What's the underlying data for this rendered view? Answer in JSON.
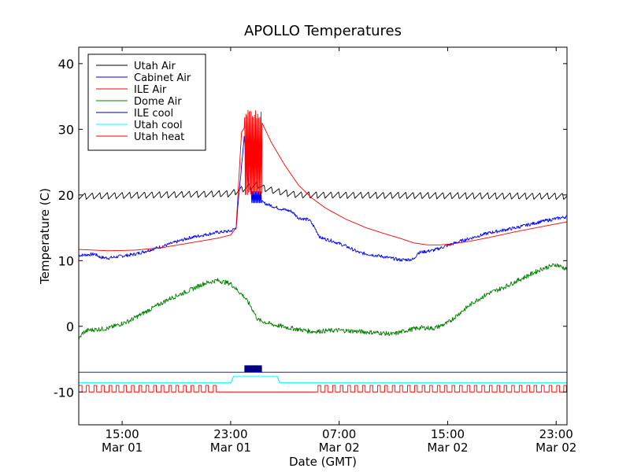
{
  "chart_data": {
    "type": "line",
    "title": "APOLLO Temperatures",
    "xlabel": "Date (GMT)",
    "ylabel": "Temperature (C)",
    "xlim": [
      11.8,
      47.8
    ],
    "ylim": [
      -15,
      42.5
    ],
    "yticks": [
      -10,
      0,
      10,
      20,
      30,
      40
    ],
    "xticks": [
      {
        "x": 15,
        "time": "15:00",
        "date": "Mar 01"
      },
      {
        "x": 23,
        "time": "23:00",
        "date": "Mar 01"
      },
      {
        "x": 31,
        "time": "07:00",
        "date": "Mar 02"
      },
      {
        "x": 39,
        "time": "15:00",
        "date": "Mar 02"
      },
      {
        "x": 47,
        "time": "23:00",
        "date": "Mar 02"
      }
    ],
    "legend_position": "top-left",
    "series": [
      {
        "name": "Utah Air",
        "color": "#000000",
        "kind": "sawtooth",
        "base": 19.8,
        "amplitude": 0.5,
        "period": 0.55,
        "points": [
          [
            11.8,
            19.8
          ],
          [
            23.0,
            20.2
          ],
          [
            24.0,
            21.0
          ],
          [
            25.0,
            21.5
          ],
          [
            25.5,
            21.0
          ],
          [
            26.5,
            20.5
          ],
          [
            28.0,
            20.0
          ],
          [
            47.8,
            19.8
          ]
        ]
      },
      {
        "name": "Cabinet Air",
        "color": "#0000ff",
        "kind": "noisy",
        "noise": 0.25,
        "points": [
          [
            11.8,
            10.8
          ],
          [
            13.0,
            11.0
          ],
          [
            13.4,
            10.5
          ],
          [
            14.0,
            10.4
          ],
          [
            16.0,
            11.0
          ],
          [
            18.0,
            12.2
          ],
          [
            20.0,
            13.5
          ],
          [
            22.0,
            14.3
          ],
          [
            23.0,
            14.5
          ],
          [
            23.4,
            15.0
          ],
          [
            23.7,
            22.0
          ],
          [
            24.0,
            29.0
          ],
          [
            24.3,
            22.0
          ],
          [
            24.6,
            20.5
          ],
          [
            25.0,
            19.5
          ],
          [
            25.4,
            18.8
          ],
          [
            26.5,
            18.0
          ],
          [
            27.5,
            17.5
          ],
          [
            28.0,
            16.5
          ],
          [
            28.8,
            16.2
          ],
          [
            29.2,
            15.0
          ],
          [
            29.6,
            13.5
          ],
          [
            30.5,
            13.0
          ],
          [
            31.5,
            12.2
          ],
          [
            32.5,
            11.2
          ],
          [
            34.0,
            10.7
          ],
          [
            35.5,
            10.1
          ],
          [
            36.5,
            10.2
          ],
          [
            36.8,
            11.2
          ],
          [
            38.0,
            11.6
          ],
          [
            40.0,
            13.0
          ],
          [
            42.0,
            14.2
          ],
          [
            44.0,
            15.0
          ],
          [
            46.0,
            16.0
          ],
          [
            47.8,
            16.7
          ]
        ]
      },
      {
        "name": "ILE Air",
        "color": "#ff0000",
        "kind": "smooth",
        "points": [
          [
            11.8,
            11.7
          ],
          [
            14.0,
            11.5
          ],
          [
            16.0,
            11.6
          ],
          [
            18.0,
            12.0
          ],
          [
            20.0,
            12.7
          ],
          [
            22.0,
            13.4
          ],
          [
            23.0,
            13.9
          ],
          [
            23.4,
            15.0
          ],
          [
            23.8,
            29.5
          ],
          [
            24.2,
            31.0
          ],
          [
            25.2,
            31.5
          ],
          [
            26.0,
            28.0
          ],
          [
            27.0,
            24.5
          ],
          [
            28.0,
            21.5
          ],
          [
            29.0,
            19.5
          ],
          [
            30.0,
            18.0
          ],
          [
            31.5,
            16.3
          ],
          [
            33.0,
            15.0
          ],
          [
            34.5,
            14.0
          ],
          [
            35.5,
            13.4
          ],
          [
            36.5,
            12.7
          ],
          [
            37.5,
            12.4
          ],
          [
            38.5,
            12.4
          ],
          [
            39.5,
            12.6
          ],
          [
            40.5,
            12.9
          ],
          [
            42.0,
            13.5
          ],
          [
            44.0,
            14.4
          ],
          [
            46.0,
            15.2
          ],
          [
            47.8,
            15.9
          ]
        ]
      },
      {
        "name": "Dome Air",
        "color": "#008000",
        "kind": "noisy",
        "noise": 0.35,
        "points": [
          [
            11.8,
            -2.0
          ],
          [
            12.1,
            -1.0
          ],
          [
            12.5,
            -0.6
          ],
          [
            14.0,
            -0.3
          ],
          [
            15.5,
            0.8
          ],
          [
            17.0,
            2.5
          ],
          [
            18.5,
            4.2
          ],
          [
            20.0,
            5.5
          ],
          [
            21.0,
            6.5
          ],
          [
            22.0,
            7.0
          ],
          [
            23.0,
            6.5
          ],
          [
            24.0,
            4.5
          ],
          [
            24.5,
            3.0
          ],
          [
            25.0,
            1.0
          ],
          [
            26.0,
            0.3
          ],
          [
            27.5,
            -0.3
          ],
          [
            29.0,
            -0.8
          ],
          [
            31.0,
            -0.6
          ],
          [
            32.5,
            -0.8
          ],
          [
            34.0,
            -1.0
          ],
          [
            35.0,
            -1.2
          ],
          [
            36.0,
            -0.6
          ],
          [
            37.0,
            -0.2
          ],
          [
            38.0,
            -0.3
          ],
          [
            39.0,
            0.5
          ],
          [
            40.0,
            2.2
          ],
          [
            41.0,
            3.8
          ],
          [
            42.0,
            5.0
          ],
          [
            43.0,
            5.8
          ],
          [
            44.0,
            6.8
          ],
          [
            45.0,
            7.8
          ],
          [
            46.0,
            8.8
          ],
          [
            47.0,
            9.4
          ],
          [
            47.8,
            8.7
          ]
        ]
      },
      {
        "name": "ILE cool",
        "color": "#000080",
        "kind": "flat",
        "points": [
          [
            11.8,
            -7.0
          ],
          [
            47.8,
            -7.0
          ]
        ]
      },
      {
        "name": "Utah cool",
        "color": "#00ffff",
        "kind": "flat",
        "points": [
          [
            11.8,
            -8.6
          ],
          [
            23.0,
            -8.6
          ],
          [
            23.2,
            -7.6
          ],
          [
            26.4,
            -7.6
          ],
          [
            26.6,
            -8.6
          ],
          [
            47.8,
            -8.6
          ]
        ]
      },
      {
        "name": "Utah heat",
        "color": "#ff0000",
        "kind": "pulses",
        "base": -10.0,
        "high": -9.0,
        "pulse_ranges": [
          [
            11.8,
            22.0
          ],
          [
            29.4,
            47.8
          ]
        ],
        "period": 0.55,
        "width": 0.2,
        "points": [
          [
            11.8,
            -10.0
          ],
          [
            47.8,
            -10.0
          ]
        ]
      }
    ],
    "heater_cycling": {
      "x_start": 24.0,
      "x_end": 25.3,
      "series": "ILE Air",
      "low": 20.0,
      "high": 33.0
    },
    "cabinet_cycling": {
      "x_start": 24.5,
      "x_end": 25.3,
      "low": 18.8,
      "high": 20.5
    },
    "ile_cool_cycling": {
      "x_start": 24.0,
      "x_end": 25.3,
      "low": -7.0,
      "high": -6.0
    }
  }
}
